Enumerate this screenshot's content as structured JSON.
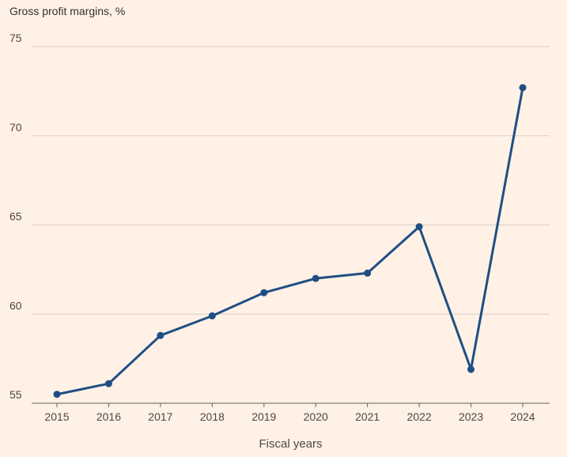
{
  "chart_data": {
    "type": "line",
    "title": "Gross profit margins, %",
    "xlabel": "Fiscal years",
    "ylabel": "",
    "categories": [
      "2015",
      "2016",
      "2017",
      "2018",
      "2019",
      "2020",
      "2021",
      "2022",
      "2023",
      "2024"
    ],
    "series": [
      {
        "values": [
          55.5,
          56.1,
          58.8,
          59.9,
          61.2,
          62.0,
          62.3,
          64.9,
          56.9,
          72.7
        ]
      }
    ],
    "ylim": [
      55,
      75
    ],
    "yticks": [
      "55",
      "60",
      "65",
      "70",
      "75"
    ],
    "grid": "horizontal",
    "colors": {
      "line": "#1f4e85",
      "grid": "#d9cdc2",
      "background": "#fff1e5",
      "axis": "#66605c"
    }
  }
}
